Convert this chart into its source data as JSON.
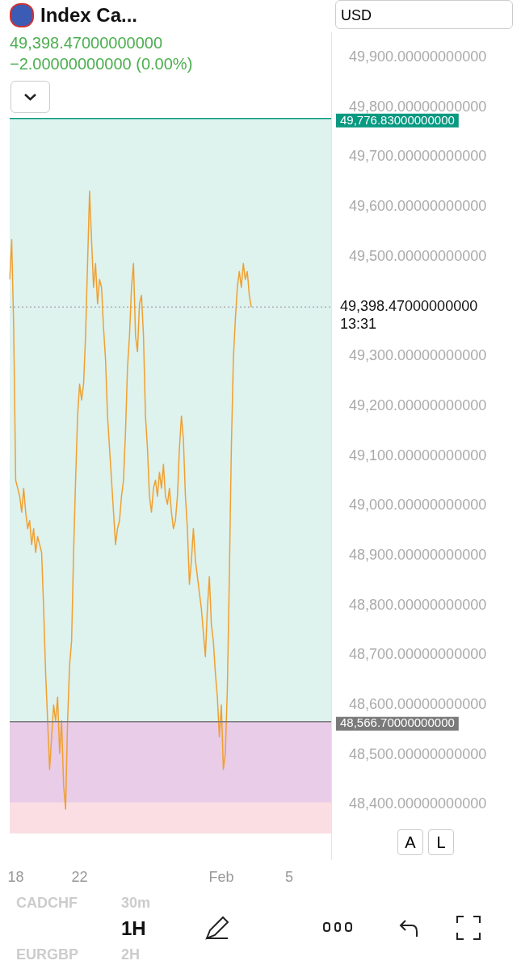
{
  "chart_data": {
    "type": "line",
    "title": "Index Ca...",
    "subtitle": "49,398.47000000000",
    "annotations": [
      "−2.00000000000 (0.00%)",
      "USD",
      "13:31",
      "A",
      "L",
      "1H",
      "CADCHF",
      "30m",
      "EURGBP",
      "2H"
    ],
    "categories": [
      null,
      null,
      null,
      "18",
      null,
      null,
      null,
      null,
      null,
      null,
      null,
      null,
      null,
      null,
      null,
      null,
      null,
      null,
      null,
      null,
      null,
      null,
      null,
      null,
      null,
      null,
      null,
      null,
      null,
      null,
      null,
      null,
      null,
      null,
      null,
      "22",
      null,
      null,
      null,
      null,
      null,
      null,
      null,
      null,
      null,
      null,
      null,
      null,
      null,
      null,
      null,
      null,
      null,
      null,
      null,
      null,
      null,
      null,
      null,
      null,
      null,
      null,
      null,
      null,
      null,
      null,
      null,
      null,
      null,
      null,
      null,
      null,
      null,
      null,
      null,
      null,
      null,
      null,
      null,
      null,
      null,
      null,
      null,
      null,
      null,
      null,
      null,
      null,
      null,
      null,
      null,
      null,
      null,
      null,
      null,
      null,
      null,
      null,
      null,
      null,
      null,
      null,
      null,
      null,
      null,
      null,
      "Feb",
      null,
      null,
      null,
      null,
      null,
      null,
      null,
      null,
      null,
      null,
      null,
      null,
      null,
      null,
      null,
      null,
      null,
      null,
      null,
      null,
      null,
      null,
      null,
      null,
      null,
      null,
      null,
      null,
      null,
      null,
      null,
      null,
      null,
      "5",
      null,
      null,
      null,
      null,
      null,
      null,
      null,
      null,
      null,
      null,
      null,
      null,
      null,
      null,
      null,
      null,
      null,
      null,
      null,
      null,
      null
    ],
    "series": [
      {
        "color": "#f0a030",
        "values": [
          49454,
          49534,
          49357,
          49051,
          49035,
          49019,
          48987,
          49035,
          48987,
          48954,
          48970,
          48922,
          48954,
          48906,
          48938,
          48922,
          48906,
          48793,
          48664,
          48568,
          48471,
          48536,
          48600,
          48568,
          48616,
          48503,
          48568,
          48439,
          48391,
          48568,
          48680,
          48728,
          48906,
          49051,
          49180,
          49244,
          49212,
          49244,
          49341,
          49486,
          49631,
          49534,
          49438,
          49486,
          49405,
          49454,
          49438,
          49357,
          49293,
          49180,
          49115,
          49051,
          48987,
          48922,
          48954,
          48970,
          49019,
          49051,
          49148,
          49277,
          49341,
          49438,
          49486,
          49341,
          49309,
          49405,
          49422,
          49341,
          49180,
          49115,
          49019,
          48987,
          49035,
          49051,
          49019,
          49067,
          49035,
          49083,
          49019,
          49003,
          49035,
          48987,
          48954,
          48970,
          49019,
          49115,
          49180,
          49132,
          49019,
          48954,
          48842,
          48890,
          48954,
          48890,
          48858,
          48825,
          48793,
          48745,
          48697,
          48793,
          48858,
          48761,
          48728,
          48664,
          48616,
          48536,
          48600,
          48471,
          48503,
          48632,
          48858,
          49115,
          49293,
          49373,
          49438,
          49470,
          49438,
          49486,
          49454,
          49470,
          49422,
          49398.47,
          null,
          null,
          null,
          null,
          null,
          null,
          null,
          null,
          null,
          null,
          null,
          null,
          null,
          null,
          null,
          null,
          null,
          null,
          null,
          null,
          null,
          null,
          null,
          null,
          null,
          null,
          null,
          null,
          null,
          null,
          null,
          null,
          null,
          null,
          null,
          null,
          null,
          null,
          null,
          null
        ]
      }
    ],
    "ylim": [
      48290,
      49950
    ],
    "yticks": [
      {
        "value": 48400,
        "label": "48,400.00000000000"
      },
      {
        "value": 48500,
        "label": "48,500.00000000000"
      },
      {
        "value": 48600,
        "label": "48,600.00000000000"
      },
      {
        "value": 48700,
        "label": "48,700.00000000000"
      },
      {
        "value": 48800,
        "label": "48,800.00000000000"
      },
      {
        "value": 48900,
        "label": "48,900.00000000000"
      },
      {
        "value": 49000,
        "label": "49,000.00000000000"
      },
      {
        "value": 49100,
        "label": "49,100.00000000000"
      },
      {
        "value": 49200,
        "label": "49,200.00000000000"
      },
      {
        "value": 49300,
        "label": "49,300.00000000000"
      },
      {
        "value": 49400,
        "label": null
      },
      {
        "value": 49500,
        "label": "49,500.00000000000"
      },
      {
        "value": 49600,
        "label": "49,600.00000000000"
      },
      {
        "value": 49700,
        "label": "49,700.00000000000"
      },
      {
        "value": 49800,
        "label": "49,800.00000000000"
      },
      {
        "value": 49900,
        "label": "49,900.00000000000"
      }
    ],
    "bands": [
      {
        "axis": "y",
        "from": 48566.7,
        "to": 49776.83,
        "color": "#d3ede8"
      },
      {
        "axis": "y",
        "from": 48342,
        "to": 48566.7,
        "color": "#f8d3da"
      },
      {
        "axis": "y",
        "from": 48405,
        "to": 48566.7,
        "color": "#e2c6ea"
      }
    ],
    "ref_lines": [
      {
        "axis": "y",
        "value": 49776.83,
        "label": "49,776.83000000000",
        "color": "#089981",
        "line_style": "solid"
      },
      {
        "axis": "y",
        "value": 48566.7,
        "label": "48,566.70000000000",
        "color": "#7a7a7a",
        "line_style": "solid"
      },
      {
        "axis": "y",
        "value": 49398.47,
        "label": "49,398.47000000000",
        "color": "#b0b0b0",
        "line_style": "dotted"
      }
    ],
    "grid": false,
    "legend": false,
    "marker": "none",
    "line_style": "solid"
  }
}
